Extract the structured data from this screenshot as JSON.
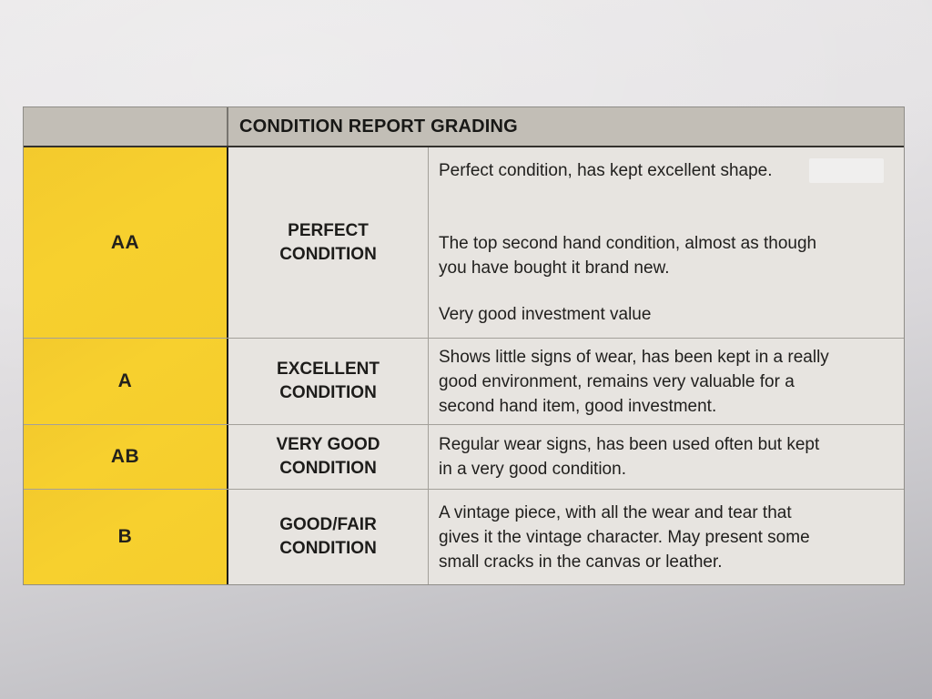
{
  "table": {
    "title": "CONDITION REPORT GRADING",
    "rows": [
      {
        "grade": "AA",
        "label": "PERFECT\nCONDITION",
        "desc": [
          "Perfect condition, has kept excellent shape.",
          "The top second hand condition, almost as though\nyou have bought it brand new.",
          "Very good investment value"
        ]
      },
      {
        "grade": "A",
        "label": "EXCELLENT\nCONDITION",
        "desc": [
          "Shows little signs of wear, has been kept in a really\ngood environment, remains very valuable for a\nsecond hand item, good investment."
        ]
      },
      {
        "grade": "AB",
        "label": "VERY GOOD\nCONDITION",
        "desc": [
          "Regular wear signs, has been used often but kept\nin a very good condition."
        ]
      },
      {
        "grade": "B",
        "label": "GOOD/FAIR\nCONDITION",
        "desc": [
          "A vintage piece, with all the wear and tear that\ngives it the vintage character. May present some\nsmall cracks in the canvas or leather."
        ]
      }
    ]
  },
  "colors": {
    "grade_cell_yellow": "#f7d02e",
    "header_gray": "#c2beb6",
    "cell_background": "#e7e4e0",
    "text": "#1f1f1f"
  }
}
